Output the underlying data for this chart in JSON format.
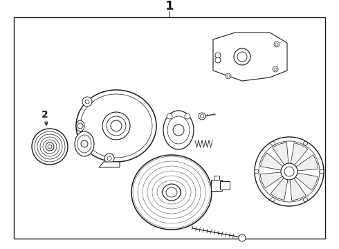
{
  "title": "1",
  "label_2": "2",
  "bg_color": "#ffffff",
  "line_color": "#1a1a1a",
  "title_fontsize": 13,
  "label_fontsize": 10,
  "fig_width": 4.9,
  "fig_height": 3.6,
  "dpi": 100,
  "border_lw": 1.0,
  "bx1": 20,
  "by1": 15,
  "bx2": 470,
  "by2": 335
}
